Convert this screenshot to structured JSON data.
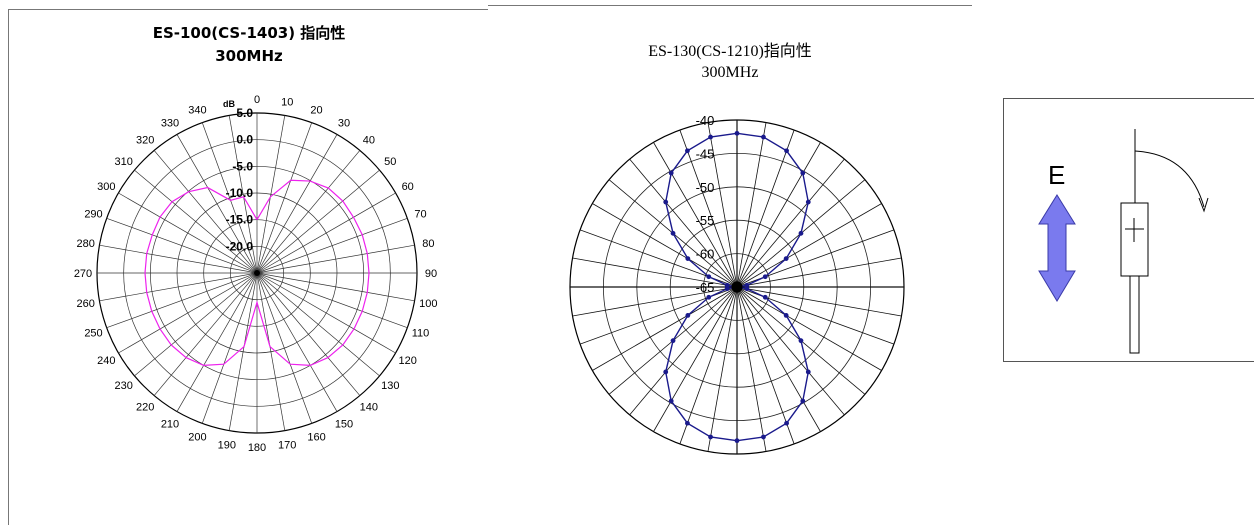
{
  "chart_data": [
    {
      "type": "polar-line",
      "title": "ES-100(CS-1403) 指向性",
      "subtitle": "300MHz",
      "angle_ticks": [
        "0",
        "10",
        "20",
        "30",
        "40",
        "50",
        "60",
        "70",
        "80",
        "90",
        "100",
        "110",
        "120",
        "130",
        "140",
        "150",
        "160",
        "170",
        "180",
        "190",
        "200",
        "210",
        "220",
        "230",
        "240",
        "250",
        "260",
        "270",
        "280",
        "290",
        "300",
        "310",
        "320",
        "330",
        "340"
      ],
      "radial_unit_label": "dB",
      "radial_tick_labels": [
        "5.0",
        "0.0",
        "-5.0",
        "-10.0",
        "-15.0",
        "-20.0"
      ],
      "radial_range": [
        -25,
        5
      ],
      "series": [
        {
          "color": "#ee22ee",
          "theta_deg": [
            0,
            10,
            20,
            30,
            40,
            50,
            60,
            70,
            80,
            90,
            100,
            110,
            120,
            130,
            140,
            150,
            160,
            170,
            180,
            190,
            200,
            210,
            220,
            230,
            240,
            250,
            260,
            270,
            280,
            290,
            300,
            310,
            320,
            330,
            340,
            350
          ],
          "r_db": [
            -15,
            -10.5,
            -6.5,
            -5.1,
            -4.2,
            -4,
            -4.1,
            -4,
            -4,
            -4,
            -4,
            -4,
            -4,
            -4,
            -4.3,
            -5,
            -6.8,
            -11,
            -19.5,
            -11,
            -6.8,
            -5,
            -4.3,
            -4,
            -4,
            -4,
            -4,
            -4,
            -4,
            -4.1,
            -4,
            -4.2,
            -5.1,
            -6.5,
            -10.5,
            -10.5
          ]
        }
      ],
      "grid": true
    },
    {
      "type": "polar-line",
      "title": "ES-130(CS-1210)指向性",
      "subtitle": "300MHz",
      "radial_tick_labels": [
        "-40",
        "-45",
        "-50",
        "-55",
        "-60",
        "-65"
      ],
      "radial_range": [
        -65,
        -40
      ],
      "series": [
        {
          "color": "#1a1a8c",
          "theta_deg": [
            0,
            10,
            20,
            30,
            40,
            50,
            60,
            70,
            80,
            90,
            100,
            110,
            120,
            130,
            140,
            150,
            160,
            170,
            180,
            190,
            200,
            210,
            220,
            230,
            240,
            250,
            260,
            270,
            280,
            290,
            300,
            310,
            320,
            330,
            340,
            350
          ],
          "r_db": [
            -42,
            -42.2,
            -43.3,
            -45.3,
            -48.4,
            -52.5,
            -56.5,
            -60.5,
            -63.5,
            -65,
            -63.5,
            -60.5,
            -56.5,
            -52.5,
            -48.4,
            -45.3,
            -43.3,
            -42.2,
            -42,
            -42.2,
            -43.3,
            -45.3,
            -48.4,
            -52.5,
            -56.5,
            -60.5,
            -63.5,
            -65,
            -63.5,
            -60.5,
            -56.5,
            -52.5,
            -48.4,
            -45.3,
            -43.3,
            -42.2
          ]
        }
      ],
      "grid": true
    }
  ],
  "diagram": {
    "e_field_label": "E",
    "arrow_color": "#7a7aee"
  }
}
